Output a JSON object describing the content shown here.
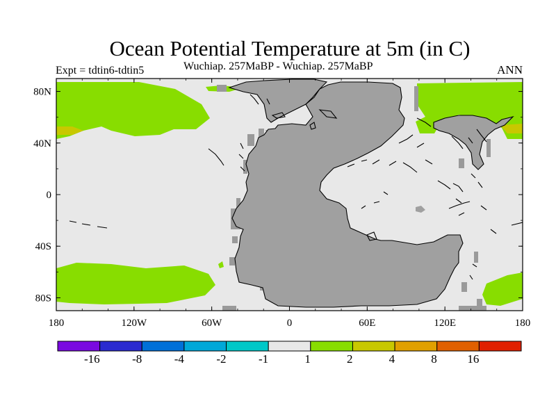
{
  "title": "Ocean Potential Temperature at 5m (in C)",
  "subtitle": "Wuchiap. 257MaBP - Wuchiap. 257MaBP",
  "experiment": "Expt = tdtin6-tdtin5",
  "season": "ANN",
  "map": {
    "lon_range": [
      -180,
      180
    ],
    "lat_range": [
      -90,
      90
    ],
    "x_tick_labels": [
      "180",
      "120W",
      "60W",
      "0",
      "60E",
      "120E",
      "180"
    ],
    "y_tick_labels": [
      "80N",
      "40N",
      "0",
      "40S",
      "80S"
    ],
    "colors": {
      "land": "#a0a0a0",
      "coast_band": "#9a9a9a",
      "ocean_neutral": "#e8e8e8",
      "anomaly_1_2": "#88dd00",
      "anomaly_2_4": "#c8c800"
    }
  },
  "colorbar": {
    "labels": [
      "-16",
      "-8",
      "-4",
      "-2",
      "-1",
      "1",
      "2",
      "4",
      "8",
      "16"
    ],
    "colors": [
      "#7a0ae0",
      "#2a2ad0",
      "#0070d8",
      "#00a8d8",
      "#00c8c8",
      "#e8e8e8",
      "#88dd00",
      "#c8c800",
      "#e0a000",
      "#e06000",
      "#e02000"
    ]
  }
}
